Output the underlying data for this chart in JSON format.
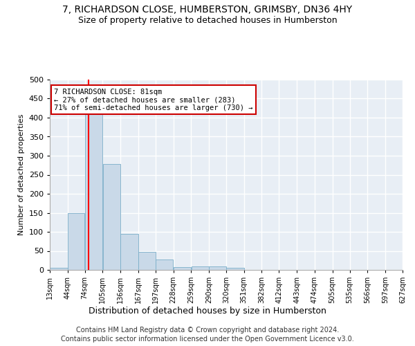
{
  "title": "7, RICHARDSON CLOSE, HUMBERSTON, GRIMSBY, DN36 4HY",
  "subtitle": "Size of property relative to detached houses in Humberston",
  "xlabel": "Distribution of detached houses by size in Humberston",
  "ylabel": "Number of detached properties",
  "footer_line1": "Contains HM Land Registry data © Crown copyright and database right 2024.",
  "footer_line2": "Contains public sector information licensed under the Open Government Licence v3.0.",
  "bar_edges": [
    13,
    44,
    74,
    105,
    136,
    167,
    197,
    228,
    259,
    290,
    320,
    351,
    382,
    412,
    443,
    474,
    505,
    535,
    566,
    597,
    627
  ],
  "bar_heights": [
    5,
    150,
    420,
    278,
    95,
    48,
    28,
    7,
    10,
    10,
    5,
    0,
    0,
    0,
    0,
    0,
    0,
    0,
    0,
    0
  ],
  "bar_color": "#c9d9e8",
  "bar_edgecolor": "#7aaec8",
  "background_color": "#e8eef5",
  "grid_color": "#ffffff",
  "red_line_x": 81,
  "annotation_line1": "7 RICHARDSON CLOSE: 81sqm",
  "annotation_line2": "← 27% of detached houses are smaller (283)",
  "annotation_line3": "71% of semi-detached houses are larger (730) →",
  "annotation_box_color": "#ffffff",
  "annotation_box_edgecolor": "#cc0000",
  "ylim": [
    0,
    500
  ],
  "yticks": [
    0,
    50,
    100,
    150,
    200,
    250,
    300,
    350,
    400,
    450,
    500
  ],
  "tick_labels": [
    "13sqm",
    "44sqm",
    "74sqm",
    "105sqm",
    "136sqm",
    "167sqm",
    "197sqm",
    "228sqm",
    "259sqm",
    "290sqm",
    "320sqm",
    "351sqm",
    "382sqm",
    "412sqm",
    "443sqm",
    "474sqm",
    "505sqm",
    "535sqm",
    "566sqm",
    "597sqm",
    "627sqm"
  ]
}
